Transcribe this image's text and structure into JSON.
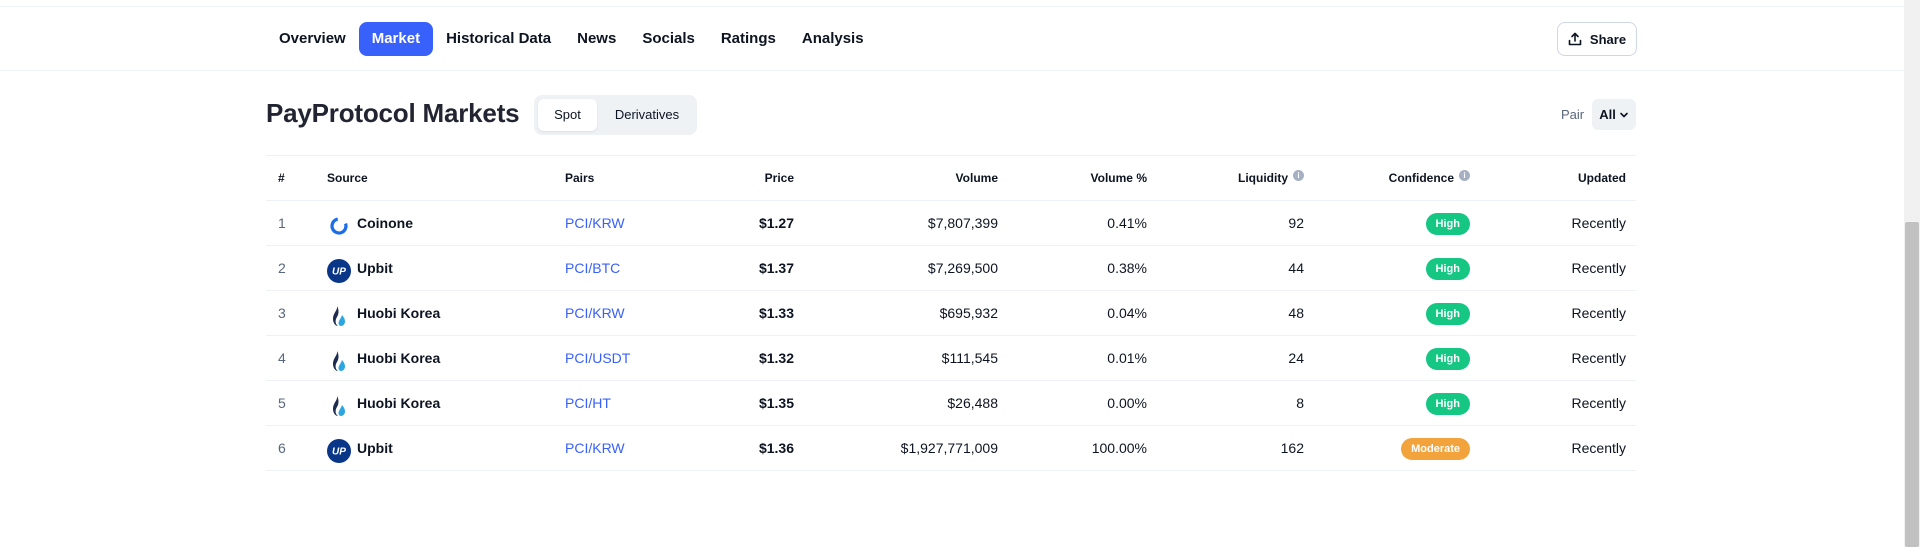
{
  "nav": {
    "tabs": [
      {
        "label": "Overview",
        "active": false
      },
      {
        "label": "Market",
        "active": true
      },
      {
        "label": "Historical Data",
        "active": false
      },
      {
        "label": "News",
        "active": false
      },
      {
        "label": "Socials",
        "active": false
      },
      {
        "label": "Ratings",
        "active": false
      },
      {
        "label": "Analysis",
        "active": false
      }
    ],
    "share_label": "Share"
  },
  "markets": {
    "title": "PayProtocol Markets",
    "segment": {
      "spot": "Spot",
      "derivatives": "Derivatives",
      "selected": "Spot"
    },
    "pair_label": "Pair",
    "pair_value": "All"
  },
  "table": {
    "headers": {
      "num": "#",
      "source": "Source",
      "pairs": "Pairs",
      "price": "Price",
      "volume": "Volume",
      "volume_pct": "Volume %",
      "liquidity": "Liquidity",
      "confidence": "Confidence",
      "updated": "Updated"
    },
    "rows": [
      {
        "num": "1",
        "source": "Coinone",
        "logo": "coinone-logo",
        "pair": "PCI/KRW",
        "price": "$1.27",
        "volume": "$7,807,399",
        "volume_pct": "0.41%",
        "liquidity": "92",
        "confidence": "High",
        "updated": "Recently"
      },
      {
        "num": "2",
        "source": "Upbit",
        "logo": "upbit-logo",
        "pair": "PCI/BTC",
        "price": "$1.37",
        "volume": "$7,269,500",
        "volume_pct": "0.38%",
        "liquidity": "44",
        "confidence": "High",
        "updated": "Recently"
      },
      {
        "num": "3",
        "source": "Huobi Korea",
        "logo": "huobi-logo",
        "pair": "PCI/KRW",
        "price": "$1.33",
        "volume": "$695,932",
        "volume_pct": "0.04%",
        "liquidity": "48",
        "confidence": "High",
        "updated": "Recently"
      },
      {
        "num": "4",
        "source": "Huobi Korea",
        "logo": "huobi-logo",
        "pair": "PCI/USDT",
        "price": "$1.32",
        "volume": "$111,545",
        "volume_pct": "0.01%",
        "liquidity": "24",
        "confidence": "High",
        "updated": "Recently"
      },
      {
        "num": "5",
        "source": "Huobi Korea",
        "logo": "huobi-logo",
        "pair": "PCI/HT",
        "price": "$1.35",
        "volume": "$26,488",
        "volume_pct": "0.00%",
        "liquidity": "8",
        "confidence": "High",
        "updated": "Recently"
      },
      {
        "num": "6",
        "source": "Upbit",
        "logo": "upbit-logo",
        "pair": "PCI/KRW",
        "price": "$1.36",
        "volume": "$1,927,771,009",
        "volume_pct": "100.00%",
        "liquidity": "162",
        "confidence": "Moderate",
        "updated": "Recently"
      }
    ]
  },
  "icons": {
    "share": "share-icon",
    "chevron": "chevron-down-icon",
    "info": "info-icon",
    "info_glyph": "i"
  },
  "colors": {
    "accent": "#3861fb",
    "high": "#16c784",
    "moderate": "#f3a33b",
    "muted": "#58667e"
  }
}
